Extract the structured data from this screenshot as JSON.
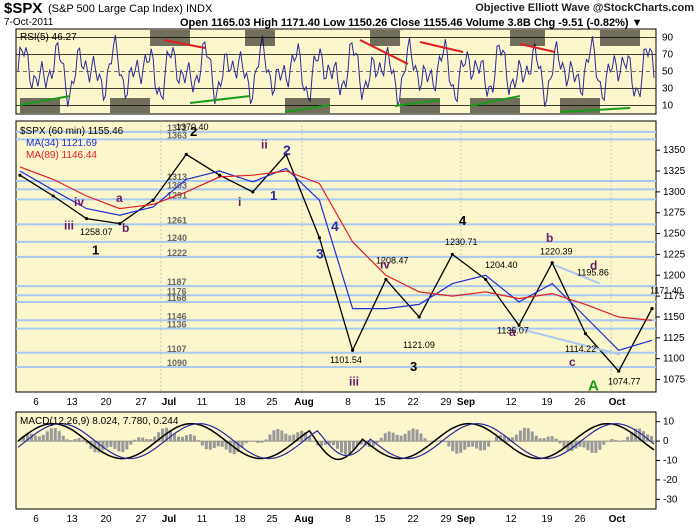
{
  "header": {
    "symbol": "$SPX",
    "name": "(S&P 500 Large Cap Index)  INDX",
    "date": "7-Oct-2011",
    "watermark": "Objective Elliott Wave @StockCharts.com",
    "quote": "Open 1165.03  High 1171.40  Low 1150.26  Close 1155.46  Volume 3.8B  Chg -9.51 (-0.82%) ▼"
  },
  "rsi_panel": {
    "label": "RSI(5) 46.27",
    "levels": [
      90,
      70,
      50,
      30,
      10
    ]
  },
  "price_panel": {
    "legend": [
      {
        "text": "$SPX (60 min) 1155.46",
        "color": "#000000"
      },
      {
        "text": "MA(34) 1121.69",
        "color": "#1f2fd6"
      },
      {
        "text": "MA(89) 1146.44",
        "color": "#e02020"
      }
    ],
    "y_ticks": [
      1350,
      1325,
      1300,
      1275,
      1250,
      1225,
      1200,
      1175,
      1150,
      1125,
      1100,
      1075
    ],
    "support_levels": [
      "1372",
      "1363",
      "1313",
      "1303",
      "1291",
      "1261",
      "1240",
      "1222",
      "1187",
      "1176",
      "1168",
      "1146",
      "1136",
      "1107",
      "1090"
    ],
    "price_labels": [
      "1370.40",
      "1258.07",
      "1101.54",
      "1208.47",
      "1121.09",
      "1230.71",
      "1204.40",
      "1136.07",
      "1220.39",
      "1195.86",
      "1114.22",
      "1074.77",
      "1171.40"
    ],
    "wave_labels": [
      "iv",
      "a",
      "iii",
      "b",
      "1",
      "2",
      "ii",
      "2",
      "1",
      "i",
      "3",
      "4",
      "iii",
      "iv",
      "3",
      "4",
      "b",
      "a",
      "d",
      "c",
      "A"
    ],
    "primary_wave_labels": [
      "1",
      "2",
      "3",
      "4",
      "A"
    ]
  },
  "macd_panel": {
    "label": "MACD(12,26,9) 8.024, 7.780, 0.244",
    "y_ticks": [
      "10",
      "0",
      "-10",
      "-20",
      "-30"
    ]
  },
  "x_axis": {
    "tick_labels": [
      "6",
      "13",
      "20",
      "27",
      "Jul",
      "11",
      "18",
      "25",
      "Aug",
      "8",
      "15",
      "22",
      "29",
      "Sep",
      "12",
      "19",
      "26",
      "Oct"
    ]
  },
  "chart_data": {
    "type": "line",
    "title": "$SPX (S&P 500 Large Cap Index) INDX",
    "xlabel": "",
    "ylabel": "",
    "ylim": [
      1060,
      1385
    ],
    "x": [
      "Jun 1",
      "Jun 6",
      "Jun 13",
      "Jun 20",
      "Jun 27",
      "Jul 1",
      "Jul 11",
      "Jul 18",
      "Jul 25",
      "Aug 1",
      "Aug 8",
      "Aug 15",
      "Aug 22",
      "Aug 29",
      "Sep 1",
      "Sep 12",
      "Sep 19",
      "Sep 26",
      "Oct 3",
      "Oct 7"
    ],
    "series": [
      {
        "name": "$SPX (60 min)",
        "values": [
          1320,
          1295,
          1268,
          1262,
          1290,
          1345,
          1320,
          1300,
          1345,
          1245,
          1110,
          1195,
          1150,
          1225,
          1195,
          1140,
          1215,
          1130,
          1085,
          1160
        ]
      },
      {
        "name": "MA(34)",
        "values": [
          1325,
          1302,
          1280,
          1272,
          1282,
          1315,
          1325,
          1312,
          1328,
          1290,
          1160,
          1160,
          1165,
          1190,
          1200,
          1168,
          1190,
          1150,
          1110,
          1122
        ]
      },
      {
        "name": "MA(89)",
        "values": [
          1330,
          1315,
          1295,
          1280,
          1285,
          1300,
          1318,
          1320,
          1325,
          1310,
          1240,
          1200,
          1180,
          1175,
          1180,
          1172,
          1178,
          1165,
          1150,
          1146
        ]
      }
    ],
    "colors": {
      "price": "#000000",
      "ma34": "#1f2fd6",
      "ma89": "#e02020",
      "grid": "#a8c8f0",
      "panel_bg": "#fbf6cc"
    }
  }
}
